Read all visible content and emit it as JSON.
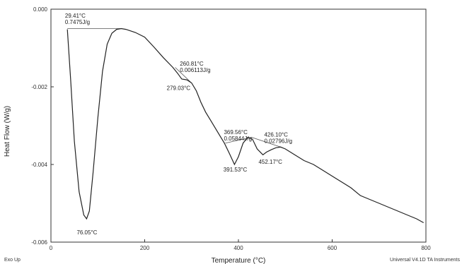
{
  "chart_data": {
    "type": "line",
    "xlabel": "Temperature (°C)",
    "ylabel": "Heat Flow (W/g)",
    "xlim": [
      0,
      800
    ],
    "ylim": [
      -0.006,
      0.0
    ],
    "x_ticks": [
      "0",
      "200",
      "400",
      "600",
      "800"
    ],
    "y_ticks": [
      "0.000",
      "-0.002",
      "-0.004",
      "-0.006"
    ],
    "series": [
      {
        "x": [
          35,
          42,
          50,
          60,
          70,
          76.05,
          82,
          90,
          100,
          110,
          120,
          130,
          140,
          150,
          160,
          180,
          200,
          220,
          240,
          260,
          270,
          279.03,
          290,
          300,
          310,
          320,
          330,
          340,
          350,
          360,
          370,
          380,
          391.53,
          400,
          410,
          420,
          430,
          440,
          452.17,
          460,
          470,
          480,
          490,
          500,
          520,
          540,
          560,
          580,
          600,
          620,
          640,
          660,
          680,
          700,
          720,
          740,
          760,
          780,
          795
        ],
        "y": [
          -0.00052,
          -0.0018,
          -0.0034,
          -0.0047,
          -0.0053,
          -0.0054,
          -0.0052,
          -0.0042,
          -0.0028,
          -0.0016,
          -0.0009,
          -0.00062,
          -0.00052,
          -0.0005,
          -0.00052,
          -0.0006,
          -0.00072,
          -0.00098,
          -0.00125,
          -0.0015,
          -0.00165,
          -0.0018,
          -0.00182,
          -0.0019,
          -0.0021,
          -0.0024,
          -0.00265,
          -0.00285,
          -0.00305,
          -0.00325,
          -0.00345,
          -0.0037,
          -0.004,
          -0.0038,
          -0.00345,
          -0.0033,
          -0.00335,
          -0.0036,
          -0.00375,
          -0.00368,
          -0.00362,
          -0.00357,
          -0.00355,
          -0.0036,
          -0.00375,
          -0.0039,
          -0.004,
          -0.00415,
          -0.0043,
          -0.00445,
          -0.0046,
          -0.0048,
          -0.0049,
          -0.005,
          -0.0051,
          -0.0052,
          -0.0053,
          -0.0054,
          -0.0055
        ]
      }
    ],
    "annotations": [
      {
        "id": "a1",
        "x": 30,
        "y": -0.00022,
        "lines": [
          "29.41°C",
          "0.7475J/g"
        ]
      },
      {
        "id": "a2",
        "x": 275,
        "y": -0.00145,
        "lines": [
          "260.81°C",
          "0.006113J/g"
        ]
      },
      {
        "id": "a3",
        "x": 247,
        "y": -0.00208,
        "lines": [
          "279.03°C"
        ]
      },
      {
        "id": "a4",
        "x": 369,
        "y": -0.00322,
        "lines": [
          "369.56°C",
          "0.05844J/g"
        ]
      },
      {
        "id": "a5",
        "x": 455,
        "y": -0.00328,
        "lines": [
          "426.10°C",
          "0.02796J/g"
        ]
      },
      {
        "id": "a6",
        "x": 368,
        "y": -0.00418,
        "lines": [
          "391.53°C"
        ]
      },
      {
        "id": "a7",
        "x": 443,
        "y": -0.00398,
        "lines": [
          "452.17°C"
        ]
      },
      {
        "id": "a8",
        "x": 55,
        "y": -0.0058,
        "lines": [
          "76.05°C"
        ]
      }
    ],
    "baselines": [
      {
        "x": [
          35,
          150
        ],
        "y": [
          -0.0005,
          -0.0005
        ]
      },
      {
        "x": [
          265,
          300
        ],
        "y": [
          -0.0015,
          -0.0019
        ]
      },
      {
        "x": [
          372,
          428
        ],
        "y": [
          -0.00345,
          -0.0033
        ]
      },
      {
        "x": [
          428,
          490
        ],
        "y": [
          -0.0033,
          -0.00355
        ]
      }
    ],
    "grid": false,
    "legend": "none"
  },
  "footer": {
    "left": "Exo Up",
    "right": "Universal V4.1D TA Instruments"
  }
}
